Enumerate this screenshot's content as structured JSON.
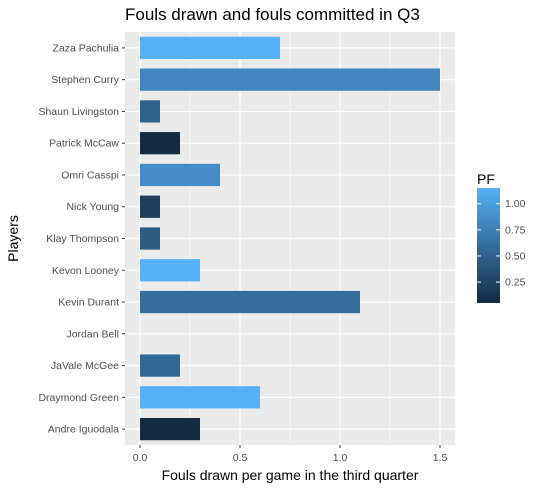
{
  "chart_data": {
    "type": "bar",
    "orientation": "horizontal",
    "title": "Fouls drawn and fouls committed in Q3",
    "xlabel": "Fouls drawn per game in the third quarter",
    "ylabel": "Players",
    "xlim": [
      -0.075,
      1.575
    ],
    "xticks": [
      "0.0",
      "0.5",
      "1.0",
      "1.5"
    ],
    "xtick_values": [
      0,
      0.5,
      1.0,
      1.5
    ],
    "grid": true,
    "categories": [
      "Zaza Pachulia",
      "Stephen Curry",
      "Shaun Livingston",
      "Patrick McCaw",
      "Omri Casspi",
      "Nick Young",
      "Klay Thompson",
      "Kevon Looney",
      "Kevin Durant",
      "Jordan Bell",
      "JaVale McGee",
      "Draymond Green",
      "Andre Iguodala"
    ],
    "values": [
      0.7,
      1.5,
      0.1,
      0.2,
      0.4,
      0.1,
      0.1,
      0.3,
      1.1,
      0.0,
      0.2,
      0.6,
      0.3
    ],
    "fill_values": [
      1.15,
      0.8,
      0.5,
      0.05,
      0.85,
      0.2,
      0.45,
      1.15,
      0.6,
      0.0,
      0.55,
      1.15,
      0.05
    ],
    "legend": {
      "title": "PF",
      "placement": "right",
      "labels": [
        "1.00",
        "0.75",
        "0.50",
        "0.25"
      ],
      "values": [
        1.0,
        0.75,
        0.5,
        0.25
      ],
      "range": [
        0.05,
        1.15
      ],
      "color_low": "#132B43",
      "color_high": "#56B1F7"
    },
    "panel_background": "#EBEBEB"
  }
}
